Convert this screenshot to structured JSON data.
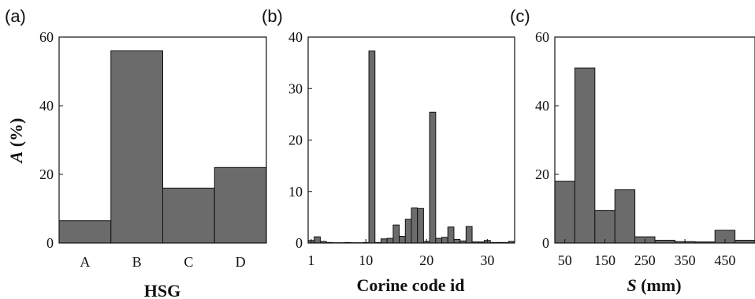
{
  "chart_data": [
    {
      "panel_label": "(a)",
      "type": "bar",
      "xlabel": "HSG",
      "ylabel_italic": "A",
      "ylabel_rest": " (%)",
      "ylim": [
        0,
        60
      ],
      "yticks": [
        0,
        20,
        40,
        60
      ],
      "categories": [
        "A",
        "B",
        "C",
        "D"
      ],
      "values": [
        6.5,
        56,
        16,
        22
      ]
    },
    {
      "panel_label": "(b)",
      "type": "bar",
      "xlabel": "Corine code id",
      "ylim": [
        0,
        40
      ],
      "yticks": [
        0,
        10,
        20,
        30,
        40
      ],
      "xlim": [
        0.5,
        34.5
      ],
      "xticks": [
        1,
        10,
        20,
        30
      ],
      "x": [
        1,
        2,
        3,
        4,
        5,
        6,
        7,
        8,
        9,
        10,
        11,
        12,
        13,
        14,
        15,
        16,
        17,
        18,
        19,
        20,
        21,
        22,
        23,
        24,
        25,
        26,
        27,
        28,
        29,
        30,
        31,
        32,
        33,
        34
      ],
      "values": [
        0.5,
        1.2,
        0.3,
        0.1,
        0.05,
        0.05,
        0.1,
        0.05,
        0.05,
        0.1,
        37.3,
        0.1,
        0.8,
        0.9,
        3.5,
        1.3,
        4.6,
        6.8,
        6.7,
        0.3,
        25.4,
        0.9,
        1.1,
        3.1,
        0.7,
        0.4,
        3.2,
        0.2,
        0.2,
        0.5,
        0.1,
        0.1,
        0.1,
        0.3
      ]
    },
    {
      "panel_label": "(c)",
      "type": "bar",
      "xlabel_italic": "S",
      "xlabel_rest": " (mm)",
      "ylim": [
        0,
        60
      ],
      "yticks": [
        0,
        20,
        40,
        60
      ],
      "xlim": [
        25,
        525
      ],
      "xticks": [
        50,
        150,
        250,
        350,
        450
      ],
      "bin_edges": [
        25,
        75,
        125,
        175,
        225,
        275,
        325,
        375,
        425,
        475,
        525
      ],
      "values": [
        18,
        51,
        9.5,
        15.5,
        1.8,
        0.8,
        0.4,
        0.3,
        3.7,
        0.8
      ]
    }
  ]
}
